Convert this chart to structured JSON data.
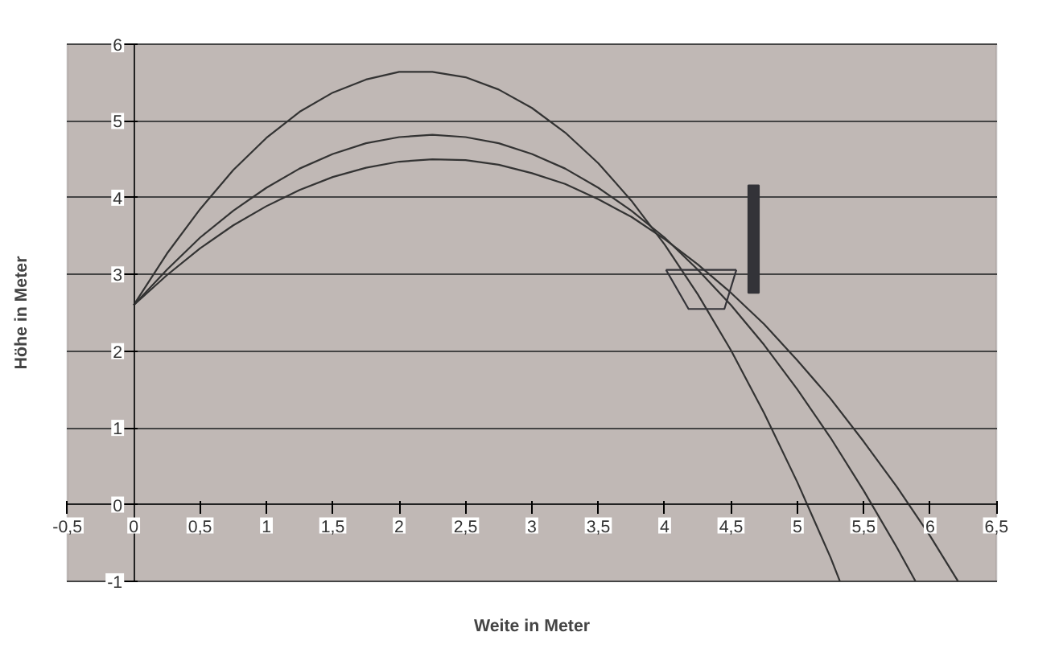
{
  "chart_data": {
    "type": "line",
    "xlabel": "Weite in Meter",
    "ylabel": "Höhe in Meter",
    "xlim": [
      -0.5,
      6.5
    ],
    "ylim": [
      -1,
      6
    ],
    "xticks": [
      {
        "value": -0.5,
        "label": "-0,5"
      },
      0,
      {
        "value": 0.5,
        "label": "0,5"
      },
      1,
      {
        "value": 1.5,
        "label": "1,5"
      },
      2,
      {
        "value": 2.5,
        "label": "2,5"
      },
      3,
      {
        "value": 3.5,
        "label": "3,5"
      },
      4,
      {
        "value": 4.5,
        "label": "4,5"
      },
      5,
      {
        "value": 5.5,
        "label": "5,5"
      },
      6,
      {
        "value": 6.5,
        "label": "6,5"
      }
    ],
    "yticks": [
      -1,
      0,
      1,
      2,
      3,
      4,
      5,
      6
    ],
    "grid": "y",
    "marker": "none",
    "line_style": "solid",
    "series": [
      {
        "color": "#333333",
        "x": [
          0,
          0.25,
          0.5,
          0.75,
          1,
          1.25,
          1.5,
          1.75,
          2,
          2.25,
          2.5,
          2.75,
          3,
          3.25,
          3.5,
          3.75,
          4,
          4.25,
          4.5,
          4.75,
          5,
          5.25,
          5.32
        ],
        "values": [
          2.6,
          3.27,
          3.85,
          4.36,
          4.78,
          5.12,
          5.37,
          5.54,
          5.64,
          5.64,
          5.57,
          5.41,
          5.17,
          4.85,
          4.45,
          3.96,
          3.39,
          2.74,
          2.01,
          1.19,
          0.29,
          -0.69,
          -1.0
        ]
      },
      {
        "color": "#333333",
        "x": [
          0,
          0.25,
          0.5,
          0.75,
          1,
          1.25,
          1.5,
          1.75,
          2,
          2.25,
          2.5,
          2.75,
          3,
          3.25,
          3.5,
          3.75,
          4,
          4.25,
          4.5,
          4.75,
          5,
          5.25,
          5.5,
          5.75,
          5.89
        ],
        "values": [
          2.6,
          3.06,
          3.48,
          3.83,
          4.13,
          4.38,
          4.57,
          4.71,
          4.79,
          4.82,
          4.79,
          4.71,
          4.57,
          4.38,
          4.13,
          3.83,
          3.48,
          3.06,
          2.6,
          2.08,
          1.5,
          0.87,
          0.18,
          -0.56,
          -1.0
        ]
      },
      {
        "color": "#333333",
        "x": [
          0,
          0.25,
          0.5,
          0.75,
          1,
          1.25,
          1.5,
          1.75,
          2,
          2.25,
          2.5,
          2.75,
          3,
          3.25,
          3.5,
          3.75,
          4,
          4.25,
          4.5,
          4.75,
          5,
          5.25,
          5.5,
          5.75,
          6,
          6.21
        ],
        "values": [
          2.6,
          2.99,
          3.34,
          3.64,
          3.89,
          4.1,
          4.27,
          4.39,
          4.47,
          4.5,
          4.49,
          4.43,
          4.32,
          4.18,
          3.98,
          3.75,
          3.46,
          3.13,
          2.76,
          2.35,
          1.88,
          1.38,
          0.82,
          0.23,
          -0.41,
          -1.0
        ]
      },
      {
        "color": "#333338",
        "x": [
          4.01,
          4.18,
          4.45,
          4.54
        ],
        "values": [
          3.06,
          2.55,
          2.55,
          3.06
        ]
      },
      {
        "color": "#333338",
        "x": [
          4.01,
          4.54
        ],
        "values": [
          3.06,
          3.06
        ]
      },
      {
        "type": "bar",
        "color": "#333338",
        "x": [
          4.67
        ],
        "base": [
          2.76
        ],
        "values": [
          1.4
        ]
      }
    ]
  }
}
